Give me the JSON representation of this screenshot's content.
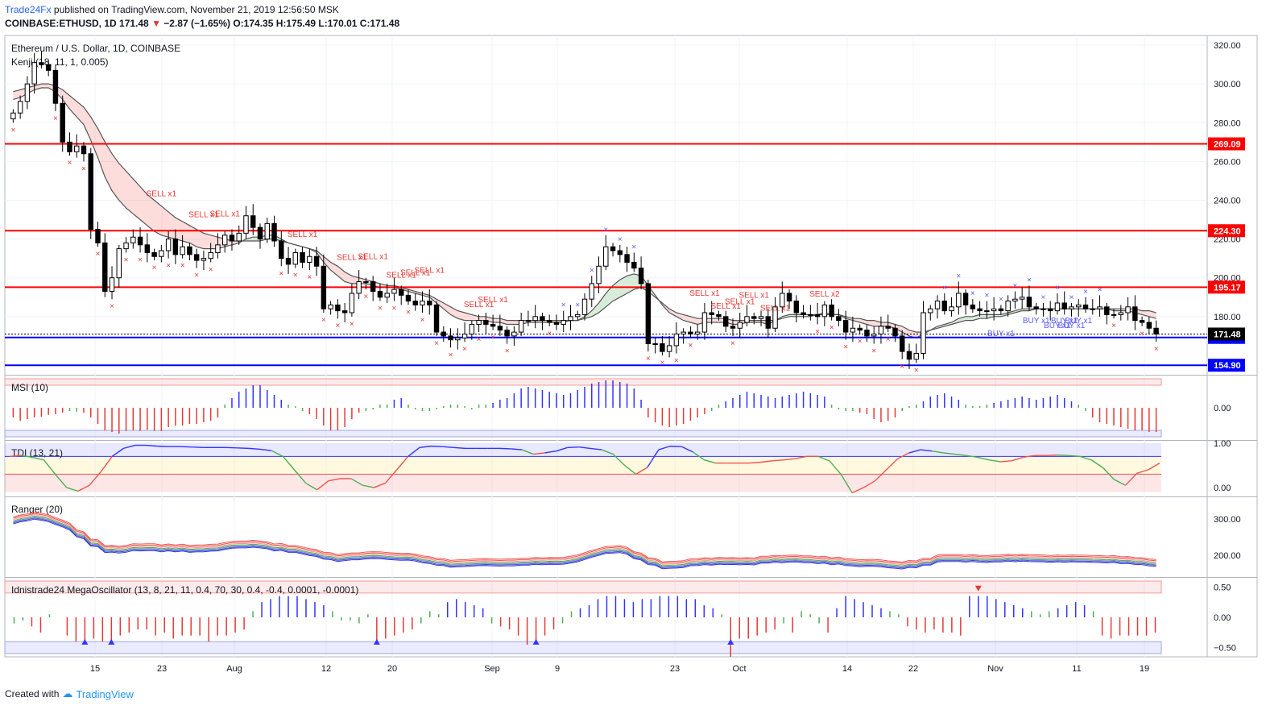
{
  "header": {
    "publisher": "Trade24Fx",
    "published_text": " published on TradingView.com, November 21, 2019 12:56:50 MSK",
    "symbol": "COINBASE:ETHUSD, 1D ",
    "last": "171.48",
    "change_arrow": "▼",
    "change": " −2.87 (−1.65%) ",
    "ohlc": "O:174.35 H:175.49 L:170.01 C:171.48"
  },
  "footer": {
    "created_with": "Created with",
    "logo_text": "TradingView"
  },
  "colors": {
    "bull": "#ffffff",
    "bear": "#000000",
    "level_red": "#ff0000",
    "level_blue": "#0000ff",
    "sell_marker": "#e53935",
    "buy_marker": "#5b5bff",
    "grid": "#f0f3fa"
  },
  "chart_data": [
    {
      "type": "candlestick",
      "title": "Ethereum / U.S. Dollar, 1D, COINBASE",
      "indicator": "Kenji (18, 11, 1, 0.005)",
      "x_tick_labels": [
        "15",
        "23",
        "Aug",
        "12",
        "20",
        "Sep",
        "9",
        "23",
        "Oct",
        "14",
        "22",
        "Nov",
        "11",
        "19"
      ],
      "y_tick_labels": [
        "180.00",
        "200.00",
        "220.00",
        "240.00",
        "260.00",
        "280.00",
        "300.00",
        "320.00"
      ],
      "ylim": [
        150,
        325
      ],
      "levels": [
        {
          "label": "269.09",
          "value": 269.09,
          "color": "#ff0000"
        },
        {
          "label": "224.30",
          "value": 224.3,
          "color": "#ff0000"
        },
        {
          "label": "195.17",
          "value": 195.17,
          "color": "#ff0000"
        },
        {
          "label": "169.25",
          "value": 169.25,
          "color": "#0000ff"
        },
        {
          "label": "154.90",
          "value": 154.9,
          "color": "#0000ff"
        }
      ],
      "last_price_label": "171.48",
      "closes": [
        285,
        291,
        300,
        311,
        310,
        307,
        290,
        270,
        265,
        268,
        264,
        225,
        218,
        193,
        200,
        215,
        218,
        221,
        217,
        213,
        211,
        214,
        220,
        212,
        216,
        212,
        209,
        210,
        213,
        217,
        222,
        219,
        223,
        232,
        226,
        220,
        228,
        219,
        210,
        207,
        213,
        208,
        211,
        206,
        184,
        186,
        183,
        182,
        192,
        198,
        198,
        193,
        190,
        192,
        194,
        191,
        188,
        186,
        188,
        186,
        172,
        170,
        168,
        169,
        171,
        176,
        178,
        176,
        175,
        173,
        170,
        172,
        178,
        178,
        180,
        178,
        177,
        176,
        178,
        180,
        181,
        189,
        197,
        206,
        216,
        214,
        212,
        208,
        205,
        197,
        166,
        166,
        162,
        165,
        171,
        172,
        171,
        172,
        182,
        181,
        180,
        175,
        174,
        177,
        180,
        179,
        180,
        174,
        185,
        192,
        188,
        182,
        181,
        181,
        180,
        186,
        180,
        178,
        172,
        174,
        173,
        170,
        171,
        175,
        174,
        170,
        162,
        158,
        161,
        182,
        184,
        188,
        183,
        185,
        192,
        186,
        184,
        183,
        183,
        184,
        183,
        188,
        189,
        190,
        185,
        184,
        184,
        183,
        187,
        184,
        185,
        186,
        184,
        184,
        185,
        181,
        181,
        182,
        185,
        178,
        177,
        174,
        171
      ],
      "bands": [
        {
          "name": "Kenji fast",
          "color": "#555555",
          "values": [
            292,
            293,
            295,
            297,
            298,
            298,
            296,
            292,
            287,
            283,
            279,
            271,
            262,
            252,
            245,
            240,
            236,
            233,
            230,
            227,
            224,
            222,
            221,
            220,
            219,
            218,
            216,
            215,
            215,
            215,
            216,
            217,
            218,
            220,
            221,
            221,
            222,
            222,
            220,
            218,
            217,
            216,
            215,
            213,
            208,
            204,
            201,
            198,
            197,
            197,
            197,
            196,
            195,
            195,
            195,
            194,
            193,
            192,
            191,
            190,
            187,
            184,
            181,
            179,
            178,
            178,
            178,
            178,
            177,
            177,
            176,
            176,
            176,
            177,
            177,
            177,
            177,
            177,
            177,
            178,
            178,
            180,
            183,
            187,
            192,
            196,
            199,
            201,
            202,
            201,
            196,
            191,
            186,
            182,
            180,
            178,
            177,
            176,
            177,
            177,
            177,
            177,
            176,
            176,
            177,
            177,
            177,
            176,
            178,
            180,
            181,
            181,
            181,
            181,
            181,
            182,
            181,
            181,
            179,
            178,
            177,
            176,
            175,
            175,
            175,
            174,
            172,
            170,
            169,
            171,
            173,
            175,
            176,
            177,
            179,
            180,
            180,
            181,
            181,
            181,
            181,
            182,
            183,
            184,
            184,
            184,
            184,
            184,
            184,
            184,
            184,
            184,
            184,
            184,
            184,
            184,
            183,
            183,
            183,
            182,
            181,
            180,
            179
          ]
        },
        {
          "name": "Kenji slow",
          "color": "#555555",
          "values": [
            296,
            297,
            298,
            299,
            300,
            300,
            299,
            297,
            294,
            291,
            288,
            283,
            277,
            270,
            264,
            259,
            255,
            251,
            247,
            243,
            240,
            237,
            234,
            231,
            229,
            227,
            225,
            223,
            222,
            221,
            220,
            219,
            219,
            219,
            219,
            219,
            220,
            220,
            219,
            218,
            217,
            216,
            215,
            214,
            211,
            208,
            206,
            203,
            201,
            200,
            199,
            198,
            197,
            196,
            196,
            195,
            194,
            193,
            192,
            191,
            189,
            187,
            185,
            183,
            182,
            181,
            180,
            180,
            179,
            179,
            178,
            178,
            178,
            178,
            178,
            178,
            178,
            178,
            178,
            178,
            178,
            179,
            180,
            182,
            185,
            188,
            190,
            192,
            194,
            195,
            193,
            190,
            187,
            184,
            182,
            181,
            180,
            179,
            179,
            179,
            179,
            179,
            178,
            178,
            178,
            178,
            178,
            178,
            178,
            179,
            180,
            180,
            180,
            180,
            181,
            181,
            181,
            181,
            180,
            179,
            179,
            178,
            178,
            177,
            177,
            176,
            175,
            173,
            172,
            172,
            173,
            174,
            175,
            176,
            177,
            178,
            178,
            179,
            179,
            180,
            180,
            181,
            182,
            183,
            183,
            184,
            184,
            184,
            184,
            184,
            184,
            184,
            184,
            184,
            184,
            184,
            184,
            184,
            184,
            184,
            183,
            183,
            182
          ]
        }
      ],
      "annotations": [
        {
          "text": "SELL x1",
          "index": 21
        },
        {
          "text": "SELL x1",
          "index": 27
        },
        {
          "text": "SELL x1",
          "index": 30
        },
        {
          "text": "SELL x1",
          "index": 41
        },
        {
          "text": "SELL x1",
          "index": 48
        },
        {
          "text": "SELL x1",
          "index": 51
        },
        {
          "text": "SELL x1",
          "index": 55
        },
        {
          "text": "SELL x1",
          "index": 57
        },
        {
          "text": "SELL x1",
          "index": 59
        },
        {
          "text": "SELL x1",
          "index": 66
        },
        {
          "text": "SELL x1",
          "index": 68
        },
        {
          "text": "SELL x1",
          "index": 98
        },
        {
          "text": "SELL x1",
          "index": 101
        },
        {
          "text": "SELL x1",
          "index": 103
        },
        {
          "text": "SELL x1",
          "index": 105
        },
        {
          "text": "SELL x1",
          "index": 108
        },
        {
          "text": "SELL x2",
          "index": 115
        },
        {
          "text": "BUY x1",
          "index": 140
        },
        {
          "text": "BUY x1",
          "index": 145
        },
        {
          "text": "BUY x1",
          "index": 148
        },
        {
          "text": "BUY x1",
          "index": 149
        },
        {
          "text": "BUY x1",
          "index": 150
        },
        {
          "text": "BUY x1",
          "index": 151
        }
      ]
    },
    {
      "type": "bar",
      "title": "MSI (10)",
      "y_tick_labels": [
        "0.00"
      ],
      "ylim": [
        -1,
        1
      ],
      "values": [
        -0.3,
        -0.4,
        -0.35,
        -0.3,
        -0.28,
        -0.22,
        -0.2,
        -0.15,
        -0.1,
        -0.12,
        -0.15,
        -0.3,
        -0.5,
        -0.7,
        -0.75,
        -0.8,
        -0.72,
        -0.7,
        -0.72,
        -0.68,
        -0.72,
        -0.72,
        -0.6,
        -0.55,
        -0.55,
        -0.5,
        -0.5,
        -0.45,
        -0.4,
        -0.3,
        0.1,
        0.3,
        0.5,
        0.6,
        0.7,
        0.7,
        0.55,
        0.4,
        0.25,
        0.1,
        0.05,
        -0.1,
        -0.2,
        -0.35,
        -0.55,
        -0.7,
        -0.7,
        -0.6,
        -0.35,
        -0.15,
        -0.1,
        -0.05,
        0.1,
        0.1,
        0.25,
        0.3,
        0.1,
        -0.05,
        -0.1,
        -0.1,
        -0.05,
        0.05,
        0.1,
        0.1,
        0.05,
        -0.05,
        0.1,
        0.1,
        0.15,
        0.25,
        0.3,
        0.45,
        0.6,
        0.65,
        0.6,
        0.55,
        0.5,
        0.45,
        0.4,
        0.45,
        0.55,
        0.65,
        0.75,
        0.8,
        0.85,
        0.85,
        0.8,
        0.75,
        0.6,
        0.25,
        -0.3,
        -0.45,
        -0.55,
        -0.6,
        -0.55,
        -0.5,
        -0.4,
        -0.3,
        -0.2,
        -0.1,
        0.1,
        0.2,
        0.3,
        0.4,
        0.5,
        0.45,
        0.4,
        0.35,
        0.3,
        0.35,
        0.4,
        0.45,
        0.5,
        0.45,
        0.4,
        0.35,
        0.1,
        -0.05,
        -0.1,
        -0.1,
        -0.15,
        -0.2,
        -0.35,
        -0.45,
        -0.4,
        -0.3,
        -0.1,
        0.05,
        0.1,
        0.2,
        0.35,
        0.4,
        0.45,
        0.35,
        0.25,
        0.1,
        0.05,
        0.05,
        0.1,
        0.15,
        0.2,
        0.25,
        0.3,
        0.35,
        0.3,
        0.25,
        0.3,
        0.35,
        0.4,
        0.3,
        0.2,
        0.1,
        -0.1,
        -0.3,
        -0.45,
        -0.5,
        -0.55,
        -0.6,
        -0.65,
        -0.7,
        -0.7,
        -0.75,
        -0.75
      ]
    },
    {
      "type": "line",
      "title": "TDI (13, 21)",
      "y_tick_labels": [
        "0.00",
        "1.00"
      ],
      "ylim": [
        -0.2,
        1.05
      ],
      "values": [
        0.7,
        0.72,
        0.68,
        0.62,
        0.3,
        0.0,
        -0.08,
        0.05,
        0.35,
        0.7,
        0.88,
        0.95,
        0.95,
        0.93,
        0.92,
        0.92,
        0.91,
        0.9,
        0.9,
        0.9,
        0.89,
        0.88,
        0.86,
        0.83,
        0.7,
        0.4,
        0.1,
        -0.05,
        0.15,
        0.2,
        0.2,
        0.05,
        0.0,
        0.1,
        0.4,
        0.7,
        0.9,
        0.93,
        0.92,
        0.9,
        0.88,
        0.88,
        0.88,
        0.88,
        0.87,
        0.85,
        0.75,
        0.78,
        0.82,
        0.9,
        0.91,
        0.88,
        0.85,
        0.75,
        0.5,
        0.3,
        0.45,
        0.85,
        0.93,
        0.92,
        0.8,
        0.62,
        0.55,
        0.55,
        0.55,
        0.55,
        0.57,
        0.6,
        0.62,
        0.65,
        0.7,
        0.7,
        0.6,
        0.3,
        -0.12,
        0.0,
        0.15,
        0.4,
        0.65,
        0.78,
        0.85,
        0.82,
        0.78,
        0.75,
        0.72,
        0.68,
        0.62,
        0.58,
        0.6,
        0.68,
        0.72,
        0.72,
        0.73,
        0.72,
        0.7,
        0.62,
        0.45,
        0.18,
        0.05,
        0.32,
        0.4,
        0.55
      ]
    },
    {
      "type": "line",
      "title": "Ranger (20)",
      "y_tick_labels": [
        "200.00",
        "300.00"
      ],
      "ylim": [
        140,
        360
      ]
    },
    {
      "type": "bar",
      "title": "Idnistrade24 MegaOscillator (13, 8, 21, 11, 0.4, 70, 30, 0.4, -0.4, 0.0001, -0.0001)",
      "y_tick_labels": [
        "0.50",
        "0.00",
        "−0.50"
      ],
      "ylim": [
        -0.65,
        0.65
      ],
      "values": [
        -0.1,
        -0.05,
        -0.15,
        -0.25,
        0.05,
        0.0,
        -0.3,
        -0.4,
        -0.4,
        -0.35,
        -0.4,
        -0.4,
        -0.3,
        -0.25,
        -0.2,
        -0.2,
        -0.3,
        -0.25,
        -0.35,
        -0.3,
        -0.3,
        -0.3,
        -0.4,
        -0.3,
        -0.3,
        -0.25,
        -0.2,
        0.1,
        0.25,
        0.3,
        0.35,
        0.35,
        0.35,
        0.3,
        0.25,
        0.2,
        0.1,
        -0.05,
        -0.05,
        -0.1,
        0.05,
        -0.4,
        -0.35,
        -0.3,
        -0.25,
        -0.2,
        -0.1,
        0.1,
        0.05,
        0.25,
        0.3,
        0.25,
        0.2,
        0.15,
        -0.1,
        -0.15,
        -0.2,
        -0.3,
        -0.45,
        -0.4,
        -0.3,
        -0.2,
        -0.1,
        0.1,
        0.15,
        0.2,
        0.3,
        0.35,
        0.35,
        0.3,
        0.25,
        0.3,
        0.3,
        0.35,
        0.35,
        0.35,
        0.3,
        0.3,
        0.2,
        0.15,
        0.05,
        -0.65,
        -0.35,
        -0.35,
        -0.3,
        -0.25,
        -0.2,
        -0.1,
        -0.25,
        0.1,
        0.05,
        -0.1,
        -0.25,
        0.15,
        0.35,
        0.3,
        0.25,
        0.2,
        0.15,
        0.1,
        0.05,
        -0.15,
        -0.2,
        -0.25,
        -0.2,
        -0.25,
        -0.25,
        -0.3,
        0.35,
        0.35,
        0.35,
        0.3,
        0.25,
        0.2,
        0.15,
        0.1,
        0.05,
        0.1,
        0.15,
        0.2,
        0.25,
        0.2,
        0.1,
        -0.3,
        -0.35,
        -0.3,
        -0.3,
        -0.3,
        -0.3,
        -0.25
      ]
    }
  ]
}
